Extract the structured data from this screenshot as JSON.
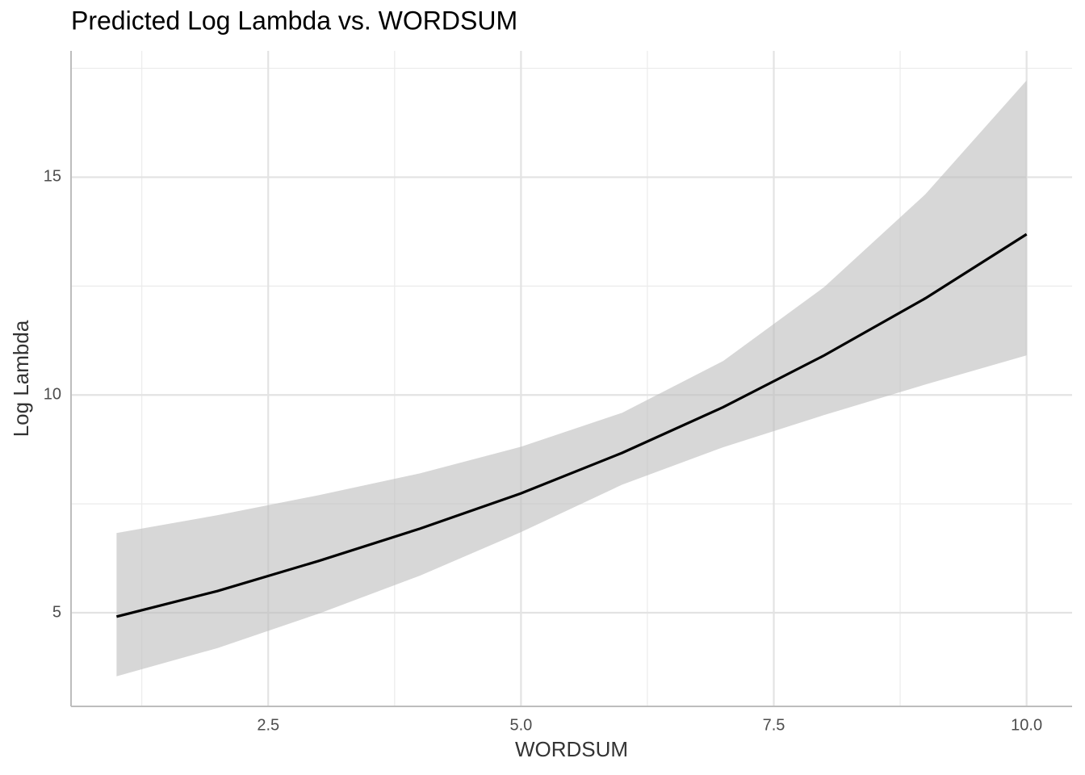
{
  "chart_data": {
    "type": "line-ribbon",
    "title": "Predicted Log Lambda vs. WORDSUM",
    "xlabel": "WORDSUM",
    "ylabel": "Log Lambda",
    "x": [
      1,
      2,
      3,
      4,
      5,
      6,
      7,
      8,
      9,
      10
    ],
    "values": [
      4.91,
      5.5,
      6.19,
      6.93,
      7.74,
      8.67,
      9.72,
      10.91,
      12.22,
      13.69
    ],
    "upper": [
      6.83,
      7.24,
      7.7,
      8.2,
      8.81,
      9.59,
      10.78,
      12.48,
      14.61,
      17.22
    ],
    "lower": [
      3.54,
      4.19,
      4.98,
      5.85,
      6.85,
      7.94,
      8.8,
      9.54,
      10.24,
      10.91
    ],
    "color": "#000000",
    "ribbon_color": "#bdbdbd",
    "xlim": [
      0.55,
      10.45
    ],
    "ylim": [
      2.85,
      17.9
    ],
    "xticks": [
      {
        "value": 2.5,
        "label": "2.5"
      },
      {
        "value": 5,
        "label": "5.0"
      },
      {
        "value": 7.5,
        "label": "7.5"
      },
      {
        "value": 10,
        "label": "10.0"
      }
    ],
    "yticks": [
      5,
      10,
      15
    ],
    "xminorticks": [
      1.25,
      3.75,
      6.25,
      8.75
    ],
    "yminorticks": [
      7.5,
      12.5,
      17.5
    ],
    "grid": true
  }
}
